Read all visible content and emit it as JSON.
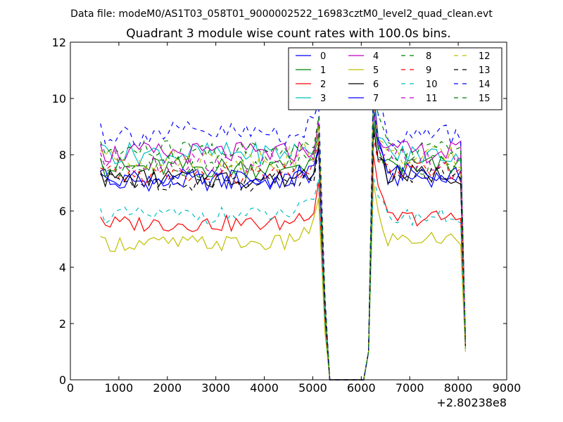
{
  "header": {
    "suptitle": "Data file: modeM0/AS1T03_058T01_9000002522_16983cztM0_level2_quad_clean.evt"
  },
  "chart_data": {
    "type": "line",
    "title": "Quadrant 3 module wise count rates with 100.0s bins.",
    "xlabel": "",
    "ylabel": "",
    "x_offset_label": "+2.80238e8",
    "xlim": [
      0,
      9000
    ],
    "ylim": [
      0,
      12
    ],
    "xticks": [
      0,
      1000,
      2000,
      3000,
      4000,
      5000,
      6000,
      7000,
      8000,
      9000
    ],
    "yticks": [
      0,
      2,
      4,
      6,
      8,
      10,
      12
    ],
    "grid": false,
    "legend_position": "top-right",
    "legend_columns": 4,
    "gap_x": [
      5350,
      5450,
      5550,
      5650,
      5750,
      5850,
      5950,
      6050
    ],
    "gap_value": 0,
    "segments": [
      {
        "x_start": 620,
        "x_step": 100,
        "count": 46
      },
      {
        "x_start": 6150,
        "x_step": 100,
        "count": 21
      }
    ],
    "series": [
      {
        "name": "0",
        "color": "#0000ff",
        "dash": "solid",
        "base": 7.05,
        "ramp": 0.4,
        "amp": 0.35,
        "seg2": 7.2,
        "peak": 9.5,
        "end": 1.3
      },
      {
        "name": "1",
        "color": "#008000",
        "dash": "solid",
        "base": 7.55,
        "ramp": 0.4,
        "amp": 0.4,
        "seg2": 7.6,
        "peak": 9.2,
        "end": 1.2
      },
      {
        "name": "2",
        "color": "#ff0000",
        "dash": "solid",
        "base": 5.55,
        "ramp": 0.7,
        "amp": 0.3,
        "seg2": 5.75,
        "peak": 8.0,
        "end": 1.1
      },
      {
        "name": "3",
        "color": "#00bfbf",
        "dash": "solid",
        "base": 8.05,
        "ramp": 0.3,
        "amp": 0.4,
        "seg2": 8.0,
        "peak": 10.5,
        "end": 1.4
      },
      {
        "name": "4",
        "color": "#bf00bf",
        "dash": "solid",
        "base": 8.05,
        "ramp": 0.3,
        "amp": 0.4,
        "seg2": 8.1,
        "peak": 10.2,
        "end": 1.3
      },
      {
        "name": "5",
        "color": "#bfbf00",
        "dash": "solid",
        "base": 4.85,
        "ramp": 0.8,
        "amp": 0.3,
        "seg2": 5.0,
        "peak": 7.0,
        "end": 1.0
      },
      {
        "name": "6",
        "color": "#000000",
        "dash": "solid",
        "base": 7.15,
        "ramp": 0.4,
        "amp": 0.35,
        "seg2": 7.3,
        "peak": 9.0,
        "end": 1.3
      },
      {
        "name": "7",
        "color": "#0000ff",
        "dash": "solid",
        "base": 7.15,
        "ramp": 0.3,
        "amp": 0.35,
        "seg2": 7.4,
        "peak": 9.7,
        "end": 1.4
      },
      {
        "name": "8",
        "color": "#008000",
        "dash": "dashed",
        "base": 7.55,
        "ramp": 0.4,
        "amp": 0.4,
        "seg2": 7.7,
        "peak": 9.6,
        "end": 1.3
      },
      {
        "name": "9",
        "color": "#ff0000",
        "dash": "dashed",
        "base": 7.25,
        "ramp": 0.4,
        "amp": 0.35,
        "seg2": 7.4,
        "peak": 8.6,
        "end": 1.2
      },
      {
        "name": "10",
        "color": "#00bfbf",
        "dash": "dashed",
        "base": 5.85,
        "ramp": 0.5,
        "amp": 0.3,
        "seg2": 5.8,
        "peak": 7.2,
        "end": 1.1
      },
      {
        "name": "11",
        "color": "#bf00bf",
        "dash": "dashed",
        "base": 7.75,
        "ramp": 0.4,
        "amp": 0.4,
        "seg2": 7.8,
        "peak": 9.6,
        "end": 1.3
      },
      {
        "name": "12",
        "color": "#bfbf00",
        "dash": "dashed",
        "base": 7.85,
        "ramp": 0.4,
        "amp": 0.4,
        "seg2": 7.9,
        "peak": 9.8,
        "end": 1.3
      },
      {
        "name": "13",
        "color": "#000000",
        "dash": "dashed",
        "base": 7.05,
        "ramp": 0.4,
        "amp": 0.35,
        "seg2": 7.3,
        "peak": 8.8,
        "end": 1.2
      },
      {
        "name": "14",
        "color": "#0000ff",
        "dash": "dashed",
        "base": 8.75,
        "ramp": 0.3,
        "amp": 0.45,
        "seg2": 8.7,
        "peak": 11.0,
        "end": 1.5
      },
      {
        "name": "15",
        "color": "#008000",
        "dash": "dashed",
        "base": 8.15,
        "ramp": 0.4,
        "amp": 0.4,
        "seg2": 8.2,
        "peak": 10.3,
        "end": 1.4
      }
    ]
  }
}
